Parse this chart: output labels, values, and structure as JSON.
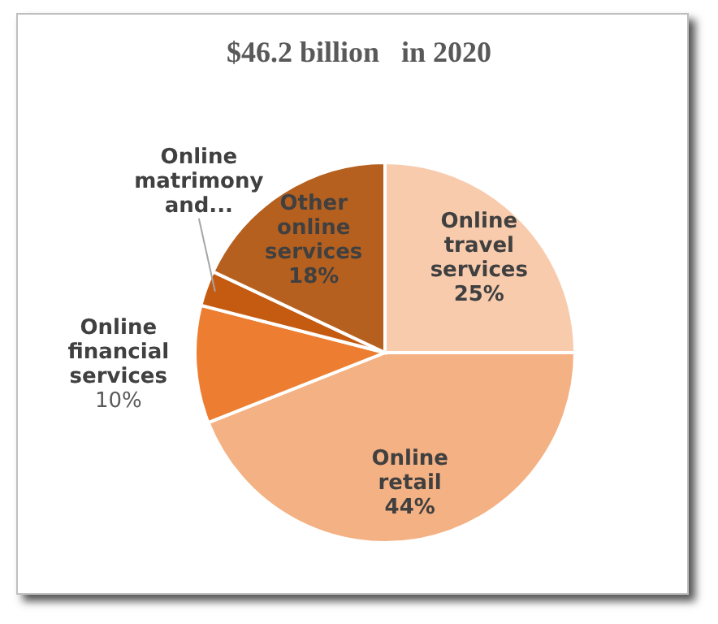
{
  "chart_data": {
    "type": "pie",
    "title": "$46.2 billion   in 2020",
    "categories": [
      "Online travel services",
      "Online retail",
      "Online financial services",
      "Online matrimony and...",
      "Other online services"
    ],
    "values": [
      25,
      44,
      10,
      3,
      18
    ],
    "colors": [
      "#f8cbad",
      "#f4b183",
      "#ed7d31",
      "#c55a11",
      "#b6601f"
    ],
    "value_labels": [
      "25%",
      "44%",
      "10%",
      null,
      "18%"
    ]
  }
}
